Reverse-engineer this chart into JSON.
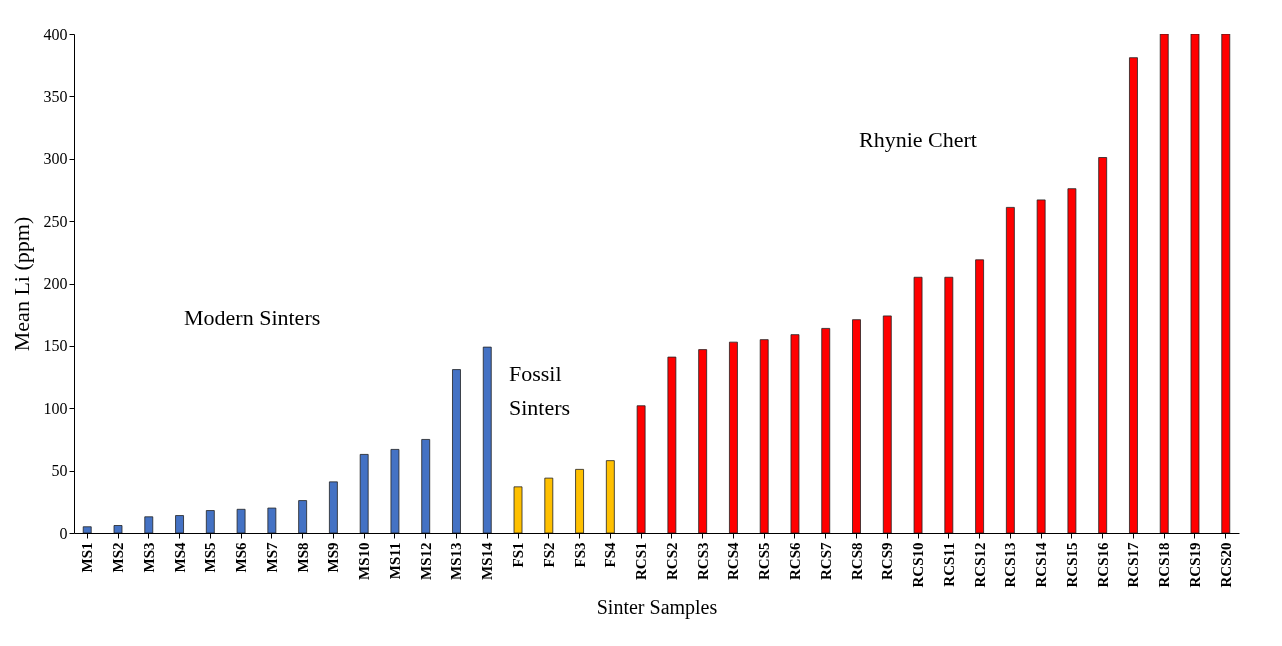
{
  "chart_data": {
    "type": "bar",
    "xlabel": "Sinter Samples",
    "ylabel": "Mean Li (ppm)",
    "categories": [
      "MS1",
      "MS2",
      "MS3",
      "MS4",
      "MS5",
      "MS6",
      "MS7",
      "MS8",
      "MS9",
      "MS10",
      "MS11",
      "MS12",
      "MS13",
      "MS14",
      "FS1",
      "FS2",
      "FS3",
      "FS4",
      "RCS1",
      "RCS2",
      "RCS3",
      "RCS4",
      "RCS5",
      "RCS6",
      "RCS7",
      "RCS8",
      "RCS9",
      "RCS10",
      "RCS11",
      "RCS12",
      "RCS13",
      "RCS14",
      "RCS15",
      "RCS16",
      "RCS17",
      "RCS18",
      "RCS19",
      "RCS20"
    ],
    "values": [
      5,
      6,
      13,
      14,
      18,
      19,
      20,
      26,
      41,
      63,
      67,
      75,
      131,
      149,
      37,
      44,
      51,
      58,
      102,
      141,
      147,
      153,
      155,
      159,
      164,
      171,
      174,
      205,
      205,
      219,
      261,
      267,
      276,
      301,
      381,
      400,
      400,
      400
    ],
    "colors": [
      "#4472c4",
      "#4472c4",
      "#4472c4",
      "#4472c4",
      "#4472c4",
      "#4472c4",
      "#4472c4",
      "#4472c4",
      "#4472c4",
      "#4472c4",
      "#4472c4",
      "#4472c4",
      "#4472c4",
      "#4472c4",
      "#ffc000",
      "#ffc000",
      "#ffc000",
      "#ffc000",
      "#ff0000",
      "#ff0000",
      "#ff0000",
      "#ff0000",
      "#ff0000",
      "#ff0000",
      "#ff0000",
      "#ff0000",
      "#ff0000",
      "#ff0000",
      "#ff0000",
      "#ff0000",
      "#ff0000",
      "#ff0000",
      "#ff0000",
      "#ff0000",
      "#ff0000",
      "#ff0000",
      "#ff0000",
      "#ff0000"
    ],
    "ylim": [
      0,
      400
    ],
    "yticks": [
      0,
      50,
      100,
      150,
      200,
      250,
      300,
      350,
      400
    ],
    "grid": false,
    "annotations": [
      "Modern Sinters",
      "Fossil Sinters",
      "Rhynie Chert"
    ]
  }
}
